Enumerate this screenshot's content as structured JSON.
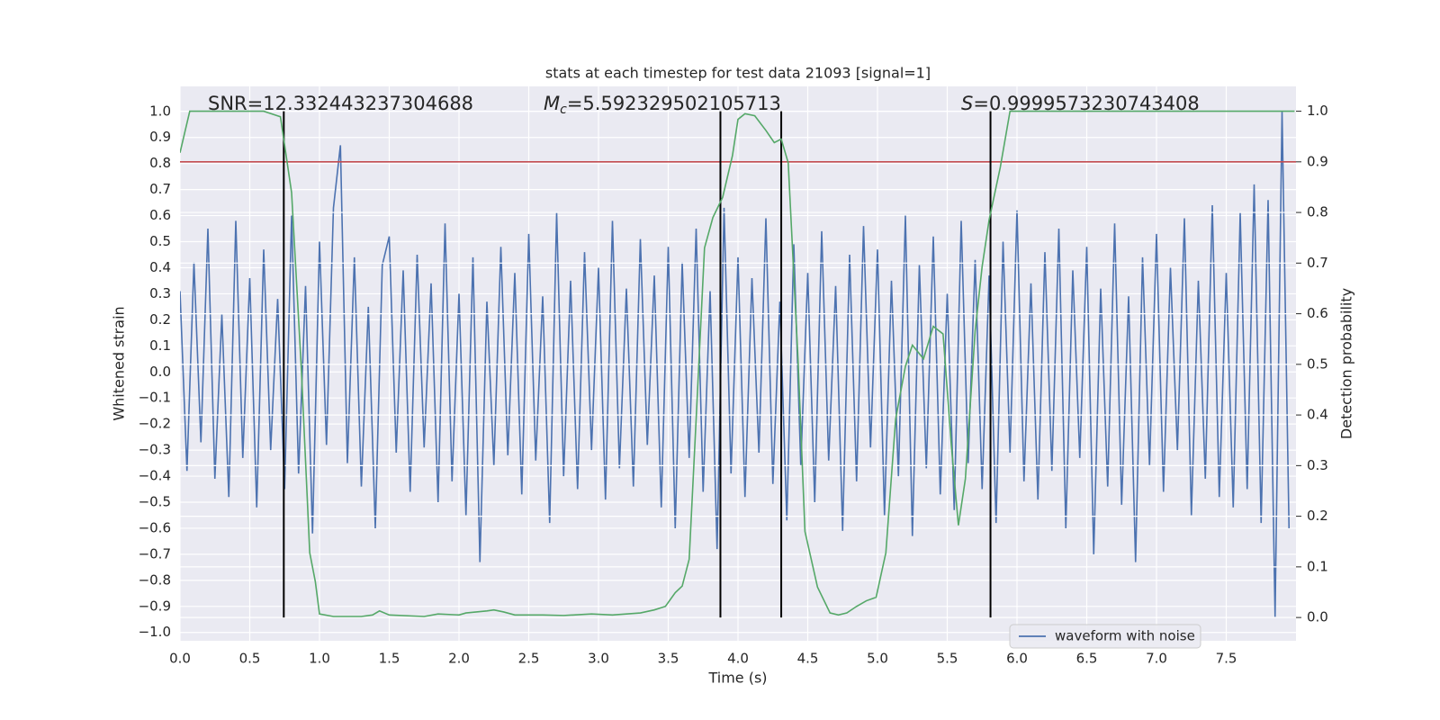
{
  "chart_data": {
    "type": "line",
    "title": "stats at each timestep for test data 21093 [signal=1]",
    "xlabel": "Time (s)",
    "ylabel": "Whitened strain",
    "y2label": "Detection probability",
    "annotations": [
      {
        "text": "SNR=12.332443237304688"
      },
      {
        "symbol": "M",
        "subscript": "c",
        "text": "=5.592329502105713"
      },
      {
        "symbol": "S",
        "text": "=0.9999573230743408"
      }
    ],
    "xlim": [
      0,
      8
    ],
    "ylim": [
      -1.032,
      1.096
    ],
    "y2lim": [
      -0.046,
      1.049
    ],
    "xticks": [
      {
        "value": 0,
        "label": "0.0"
      },
      {
        "value": 0.5,
        "label": "0.5"
      },
      {
        "value": 1,
        "label": "1.0"
      },
      {
        "value": 1.5,
        "label": "1.5"
      },
      {
        "value": 2,
        "label": "2.0"
      },
      {
        "value": 2.5,
        "label": "2.5"
      },
      {
        "value": 3,
        "label": "3.0"
      },
      {
        "value": 3.5,
        "label": "3.5"
      },
      {
        "value": 4,
        "label": "4.0"
      },
      {
        "value": 4.5,
        "label": "4.5"
      },
      {
        "value": 5,
        "label": "5.0"
      },
      {
        "value": 5.5,
        "label": "5.5"
      },
      {
        "value": 6,
        "label": "6.0"
      },
      {
        "value": 6.5,
        "label": "6.5"
      },
      {
        "value": 7,
        "label": "7.0"
      },
      {
        "value": 7.5,
        "label": "7.5"
      }
    ],
    "yticks": [
      {
        "value": -1,
        "label": "−1.0"
      },
      {
        "value": -0.9,
        "label": "−0.9"
      },
      {
        "value": -0.8,
        "label": "−0.8"
      },
      {
        "value": -0.7,
        "label": "−0.7"
      },
      {
        "value": -0.6,
        "label": "−0.6"
      },
      {
        "value": -0.5,
        "label": "−0.5"
      },
      {
        "value": -0.4,
        "label": "−0.4"
      },
      {
        "value": -0.3,
        "label": "−0.3"
      },
      {
        "value": -0.2,
        "label": "−0.2"
      },
      {
        "value": -0.1,
        "label": "−0.1"
      },
      {
        "value": 0,
        "label": "0.0"
      },
      {
        "value": 0.1,
        "label": "0.1"
      },
      {
        "value": 0.2,
        "label": "0.2"
      },
      {
        "value": 0.3,
        "label": "0.3"
      },
      {
        "value": 0.4,
        "label": "0.4"
      },
      {
        "value": 0.5,
        "label": "0.5"
      },
      {
        "value": 0.6,
        "label": "0.6"
      },
      {
        "value": 0.7,
        "label": "0.7"
      },
      {
        "value": 0.8,
        "label": "0.8"
      },
      {
        "value": 0.9,
        "label": "0.9"
      },
      {
        "value": 1,
        "label": "1.0"
      }
    ],
    "y2ticks": [
      {
        "value": 0,
        "label": "0.0"
      },
      {
        "value": 0.1,
        "label": "0.1"
      },
      {
        "value": 0.2,
        "label": "0.2"
      },
      {
        "value": 0.3,
        "label": "0.3"
      },
      {
        "value": 0.4,
        "label": "0.4"
      },
      {
        "value": 0.5,
        "label": "0.5"
      },
      {
        "value": 0.6,
        "label": "0.6"
      },
      {
        "value": 0.7,
        "label": "0.7"
      },
      {
        "value": 0.8,
        "label": "0.8"
      },
      {
        "value": 0.9,
        "label": "0.9"
      },
      {
        "value": 1,
        "label": "1.0"
      }
    ],
    "grid": true,
    "legend": "lower right",
    "series": [
      {
        "name": "waveform with noise",
        "color": "#4c72b0",
        "axis": "y",
        "x": [
          0,
          0.05,
          0.1,
          0.15,
          0.2,
          0.25,
          0.3,
          0.35,
          0.4,
          0.45,
          0.5,
          0.55,
          0.6,
          0.65,
          0.7,
          0.75,
          0.8,
          0.85,
          0.9,
          0.95,
          1,
          1.05,
          1.1,
          1.15,
          1.2,
          1.25,
          1.3,
          1.35,
          1.4,
          1.45,
          1.5,
          1.55,
          1.6,
          1.65,
          1.7,
          1.75,
          1.8,
          1.85,
          1.9,
          1.95,
          2,
          2.05,
          2.1,
          2.15,
          2.2,
          2.25,
          2.3,
          2.35,
          2.4,
          2.45,
          2.5,
          2.55,
          2.6,
          2.65,
          2.7,
          2.75,
          2.8,
          2.85,
          2.9,
          2.95,
          3,
          3.05,
          3.1,
          3.15,
          3.2,
          3.25,
          3.3,
          3.35,
          3.4,
          3.45,
          3.5,
          3.55,
          3.6,
          3.65,
          3.7,
          3.75,
          3.8,
          3.85,
          3.9,
          3.95,
          4,
          4.05,
          4.1,
          4.15,
          4.2,
          4.25,
          4.3,
          4.35,
          4.4,
          4.45,
          4.5,
          4.55,
          4.6,
          4.65,
          4.7,
          4.75,
          4.8,
          4.85,
          4.9,
          4.95,
          5,
          5.05,
          5.1,
          5.15,
          5.2,
          5.25,
          5.3,
          5.35,
          5.4,
          5.45,
          5.5,
          5.55,
          5.6,
          5.65,
          5.7,
          5.75,
          5.8,
          5.85,
          5.9,
          5.95,
          6,
          6.05,
          6.1,
          6.15,
          6.2,
          6.25,
          6.3,
          6.35,
          6.4,
          6.45,
          6.5,
          6.55,
          6.6,
          6.65,
          6.7,
          6.75,
          6.8,
          6.85,
          6.9,
          6.95,
          7,
          7.05,
          7.1,
          7.15,
          7.2,
          7.25,
          7.3,
          7.35,
          7.4,
          7.45,
          7.5,
          7.55,
          7.6,
          7.65,
          7.7,
          7.75,
          7.8,
          7.85,
          7.9,
          7.95
        ],
        "values": [
          0.31,
          -0.38,
          0.42,
          -0.27,
          0.55,
          -0.41,
          0.22,
          -0.48,
          0.58,
          -0.33,
          0.36,
          -0.52,
          0.47,
          -0.3,
          0.28,
          -0.45,
          0.6,
          -0.39,
          0.33,
          -0.62,
          0.5,
          -0.28,
          0.63,
          0.87,
          -0.35,
          0.44,
          -0.44,
          0.25,
          -0.6,
          0.41,
          0.52,
          -0.31,
          0.39,
          -0.46,
          0.45,
          -0.29,
          0.34,
          -0.5,
          0.57,
          -0.42,
          0.3,
          -0.55,
          0.44,
          -0.73,
          0.27,
          -0.36,
          0.48,
          -0.32,
          0.38,
          -0.47,
          0.53,
          -0.34,
          0.29,
          -0.58,
          0.61,
          -0.4,
          0.35,
          -0.45,
          0.46,
          -0.3,
          0.4,
          -0.49,
          0.58,
          -0.37,
          0.32,
          -0.44,
          0.51,
          -0.28,
          0.37,
          -0.52,
          0.48,
          -0.6,
          0.42,
          -0.33,
          0.55,
          -0.46,
          0.31,
          -0.68,
          0.63,
          -0.39,
          0.44,
          -0.48,
          0.36,
          -0.31,
          0.59,
          -0.43,
          0.27,
          -0.57,
          0.49,
          -0.36,
          0.38,
          -0.5,
          0.54,
          -0.34,
          0.33,
          -0.61,
          0.45,
          -0.42,
          0.56,
          -0.29,
          0.47,
          -0.55,
          0.35,
          -0.4,
          0.6,
          -0.63,
          0.41,
          -0.37,
          0.52,
          -0.47,
          0.3,
          -0.53,
          0.58,
          -0.35,
          0.43,
          -0.45,
          0.37,
          -0.58,
          0.5,
          -0.31,
          0.62,
          -0.42,
          0.34,
          -0.49,
          0.46,
          -0.38,
          0.55,
          -0.6,
          0.39,
          -0.33,
          0.48,
          -0.7,
          0.32,
          -0.44,
          0.57,
          -0.51,
          0.29,
          -0.73,
          0.44,
          -0.36,
          0.53,
          -0.46,
          0.4,
          -0.3,
          0.59,
          -0.55,
          0.35,
          -0.41,
          0.64,
          -0.48,
          0.38,
          -0.52,
          0.61,
          -0.45,
          0.72,
          -0.58,
          0.66,
          -0.94,
          1.0,
          -0.6
        ]
      },
      {
        "color": "#55a868",
        "axis": "y2",
        "x": [
          0,
          0.07,
          0.6,
          0.72,
          0.8,
          0.87,
          0.93,
          0.97,
          1,
          1.1,
          1.3,
          1.38,
          1.43,
          1.5,
          1.75,
          1.85,
          2,
          2.05,
          2.2,
          2.25,
          2.32,
          2.4,
          2.6,
          2.75,
          2.95,
          3.1,
          3.3,
          3.4,
          3.48,
          3.55,
          3.6,
          3.65,
          3.7,
          3.76,
          3.82,
          3.89,
          3.96,
          4,
          4.05,
          4.12,
          4.2,
          4.26,
          4.31,
          4.36,
          4.43,
          4.48,
          4.57,
          4.66,
          4.72,
          4.78,
          4.85,
          4.92,
          4.99,
          5.06,
          5.13,
          5.2,
          5.25,
          5.33,
          5.4,
          5.47,
          5.53,
          5.58,
          5.63,
          5.7,
          5.75,
          5.8,
          5.88,
          5.95,
          6.5,
          7.5,
          7.55,
          7.99
        ],
        "values": [
          0.918,
          1.0,
          1.0,
          0.989,
          0.839,
          0.49,
          0.128,
          0.071,
          0.007,
          0.002,
          0.002,
          0.005,
          0.013,
          0.005,
          0.002,
          0.007,
          0.005,
          0.009,
          0.013,
          0.015,
          0.011,
          0.005,
          0.005,
          0.004,
          0.007,
          0.005,
          0.009,
          0.015,
          0.022,
          0.049,
          0.062,
          0.115,
          0.392,
          0.73,
          0.79,
          0.83,
          0.912,
          0.984,
          0.995,
          0.991,
          0.962,
          0.938,
          0.945,
          0.898,
          0.511,
          0.17,
          0.06,
          0.009,
          0.005,
          0.009,
          0.022,
          0.033,
          0.04,
          0.128,
          0.392,
          0.496,
          0.538,
          0.511,
          0.575,
          0.56,
          0.338,
          0.182,
          0.274,
          0.566,
          0.693,
          0.785,
          0.889,
          1.0,
          1.0,
          1.0,
          1.0,
          1.0
        ]
      }
    ],
    "threshold": {
      "value": 0.9,
      "color": "#c44e52",
      "axis": "y2"
    },
    "vlines": {
      "x": [
        0.744,
        3.874,
        4.31,
        5.81
      ],
      "range": [
        0,
        1
      ],
      "color": "#000000",
      "axis": "y2"
    }
  }
}
